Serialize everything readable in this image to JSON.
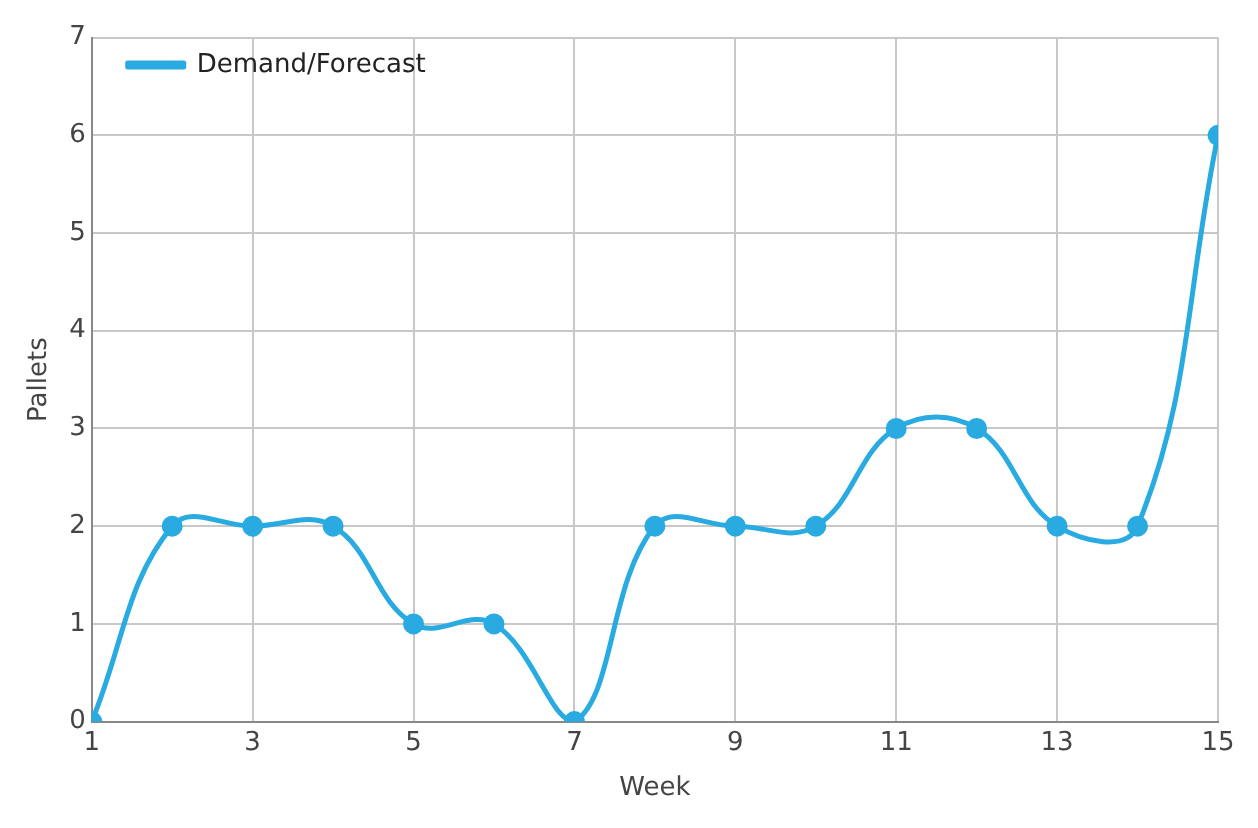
{
  "chart_data": {
    "type": "line",
    "xlabel": "Week",
    "ylabel": "Pallets",
    "x": [
      1,
      2,
      3,
      4,
      5,
      6,
      7,
      8,
      9,
      10,
      11,
      12,
      13,
      14,
      15
    ],
    "series": [
      {
        "name": "Demand/Forecast",
        "color": "#29abe2",
        "values": [
          0,
          2,
          2,
          2,
          1,
          1,
          0,
          2,
          2,
          2,
          3,
          3,
          2,
          2,
          6
        ]
      }
    ],
    "xlim": [
      1,
      15
    ],
    "xticks": [
      1,
      3,
      5,
      7,
      9,
      11,
      13,
      15
    ],
    "ylim": [
      0,
      7
    ],
    "yticks": [
      0,
      1,
      2,
      3,
      4,
      5,
      6,
      7
    ],
    "grid": true,
    "legend": "top left",
    "marker": "circle",
    "line_style": "solid"
  }
}
